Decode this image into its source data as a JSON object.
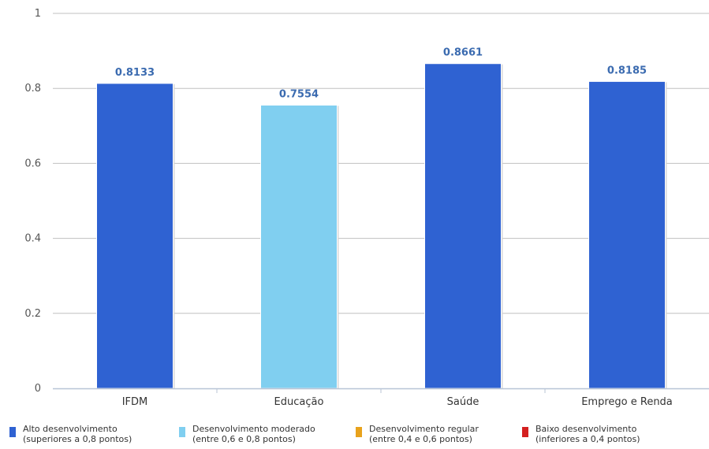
{
  "chart_data": {
    "type": "bar",
    "categories": [
      "IFDM",
      "Educação",
      "Saúde",
      "Emprego e Renda"
    ],
    "values": [
      0.8133,
      0.7554,
      0.8661,
      0.8185
    ],
    "value_labels": [
      "0.8133",
      "0.7554",
      "0.8661",
      "0.8185"
    ],
    "bar_colors": [
      "#2f62d2",
      "#80cff0",
      "#2f62d2",
      "#2f62d2"
    ],
    "ylim": [
      0,
      1
    ],
    "yticks": [
      0,
      0.2,
      0.4,
      0.6,
      0.8,
      1
    ],
    "ytick_labels": [
      "0",
      "0.2",
      "0.4",
      "0.6",
      "0.8",
      "1"
    ],
    "grid": true,
    "legend_position": "bottom",
    "legend": [
      {
        "line1": "Alto desenvolvimento",
        "line2": "(superiores a 0,8 pontos)",
        "color": "#2f62d2"
      },
      {
        "line1": "Desenvolvimento moderado",
        "line2": "(entre 0,6 e 0,8 pontos)",
        "color": "#80cff0"
      },
      {
        "line1": "Desenvolvimento regular",
        "line2": "(entre 0,4 e 0,6 pontos)",
        "color": "#e8a21c"
      },
      {
        "line1": "Baixo desenvolvimento",
        "line2": "(inferiores a 0,4 pontos)",
        "color": "#d42020"
      }
    ]
  }
}
